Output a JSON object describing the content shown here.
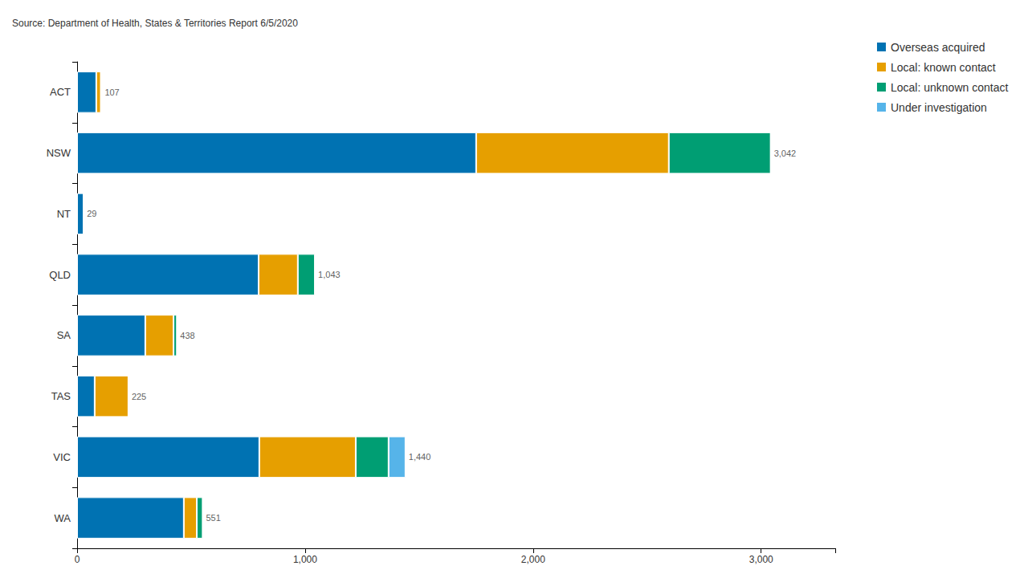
{
  "chart_data": {
    "type": "bar",
    "title": "Source: Department of Health, States & Territories Report 6/5/2020",
    "orientation": "horizontal",
    "stacked": true,
    "grid": false,
    "legend": "top-right",
    "categories": [
      "ACT",
      "NSW",
      "NT",
      "QLD",
      "SA",
      "TAS",
      "VIC",
      "WA"
    ],
    "series": [
      {
        "name": "Overseas acquired",
        "color": "#0072b2",
        "values": [
          84,
          1750,
          29,
          796,
          299,
          77,
          799,
          468
        ]
      },
      {
        "name": "Local: known contact",
        "color": "#e69f00",
        "values": [
          20,
          845,
          0,
          172,
          124,
          148,
          423,
          57
        ]
      },
      {
        "name": "Local: unknown contact",
        "color": "#009e73",
        "values": [
          3,
          447,
          0,
          75,
          15,
          0,
          144,
          26
        ]
      },
      {
        "name": "Under investigation",
        "color": "#56b4e9",
        "values": [
          0,
          0,
          0,
          0,
          0,
          0,
          74,
          0
        ]
      }
    ],
    "totals": [
      107,
      3042,
      29,
      1043,
      438,
      225,
      1440,
      551
    ],
    "total_labels": [
      "107",
      "3,042",
      "29",
      "1,043",
      "438",
      "225",
      "1,440",
      "551"
    ],
    "xlim": [
      0,
      3325
    ],
    "xticks": [
      0,
      {
        "value": 1000,
        "label": "1,000"
      },
      {
        "value": 2000,
        "label": "2,000"
      },
      {
        "value": 3000,
        "label": "3,000"
      }
    ]
  }
}
